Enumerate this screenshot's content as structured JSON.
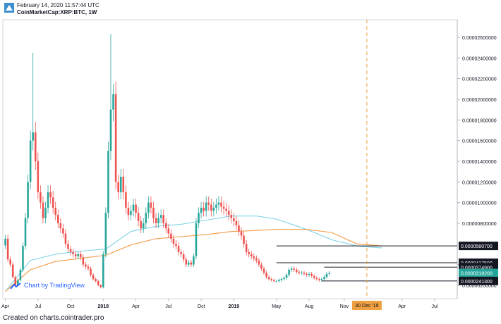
{
  "header": {
    "timestamp": "February 14, 2020 11:57:44 UTC",
    "symbol": "CoinMarketCap:XRP:BTC, 1W"
  },
  "watermark": "Chart by TradingView",
  "footer": "Created on charts.cointrader.pro",
  "colors": {
    "up": "#26a69a",
    "down": "#ef5350",
    "ma_orange": "#f39c45",
    "ma_cyan": "#7fd3e6",
    "marker": "#f0a040"
  },
  "chart_data": {
    "type": "candlestick",
    "title": "",
    "y_tick_labels": [
      "0.00002600000",
      "0.00002400000",
      "0.00002200000",
      "0.00002000000",
      "0.00001800000",
      "0.00001600000",
      "0.00001400000",
      "0.00001200000",
      "0.00001000000",
      "0.00000800000",
      "0.00000600000",
      "0.00000400000",
      "0.00000200000"
    ],
    "y_ticks": [
      2.6e-05,
      2.4e-05,
      2.2e-05,
      2e-05,
      1.8e-05,
      1.6e-05,
      1.4e-05,
      1.2e-05,
      1e-05,
      8e-06,
      6e-06,
      4e-06,
      2e-06
    ],
    "ylim": [
      7e-07,
      2.77e-05
    ],
    "x_tick_labels": [
      "Apr",
      "Jul",
      "Oct",
      "2018",
      "Apr",
      "Jul",
      "Oct",
      "2019",
      "May",
      "Aug",
      "Nov",
      "Apr",
      "Jul"
    ],
    "x_ticks": [
      0,
      13,
      26,
      39,
      52,
      65,
      78,
      91,
      108,
      121,
      135,
      158,
      171
    ],
    "xlim": [
      -1,
      180
    ],
    "highlighted_x_label": "30 Dec '19",
    "highlighted_x": 144,
    "price_labels": [
      {
        "label": "0.0000580700",
        "value": 5.807e-06,
        "bg": "#131722"
      },
      {
        "label": "0.0000417500",
        "value": 4.175e-06,
        "bg": "#131722"
      },
      {
        "label": "0.0000374900",
        "value": 3.749e-06,
        "bg": "#131722"
      },
      {
        "label": "0.0000318200",
        "value": 3.182e-06,
        "bg": "#26a69a"
      },
      {
        "label": "0.0000241300",
        "value": 2.413e-06,
        "bg": "#131722"
      }
    ],
    "hlines": [
      {
        "value": 5.807e-06,
        "x_from": 108
      },
      {
        "value": 4.175e-06,
        "x_from": 108
      },
      {
        "value": 3.749e-06,
        "x_from": 127
      },
      {
        "value": 2.413e-06,
        "x_from": 126
      }
    ],
    "close_series": [
      6.5e-06,
      4.5e-06,
      4e-06,
      2.8e-06,
      2e-06,
      2.5e-06,
      3.5e-06,
      5.8e-06,
      8.5e-06,
      1.2e-05,
      1.6e-05,
      1.68e-05,
      1.4e-05,
      1.1e-05,
      1e-05,
      8.5e-06,
      9.5e-06,
      1.1e-05,
      1.05e-05,
      9.5e-06,
      8.8e-06,
      8e-06,
      7.5e-06,
      7e-06,
      6e-06,
      5.5e-06,
      5.2e-06,
      5e-06,
      4.8e-06,
      5e-06,
      4.7e-06,
      4e-06,
      3.8e-06,
      3.6e-06,
      3e-06,
      2.6e-06,
      2.4e-06,
      2e-06,
      1.8e-06,
      5e-06,
      9e-06,
      1.5e-05,
      1.9e-05,
      2.05e-05,
      1.2e-05,
      1.1e-05,
      1.25e-05,
      1.1e-05,
      9.5e-06,
      8.8e-06,
      9.2e-06,
      9.8e-06,
      9e-06,
      8.2e-06,
      7.5e-06,
      8e-06,
      9e-06,
      1e-05,
      9.5e-06,
      8.5e-06,
      8e-06,
      8.5e-06,
      8.8e-06,
      8e-06,
      7.5e-06,
      7e-06,
      6.5e-06,
      6e-06,
      5.8e-06,
      5.2e-06,
      5e-06,
      4.5e-06,
      4e-06,
      4.2e-06,
      4e-06,
      4.8e-06,
      8e-06,
      9e-06,
      9.5e-06,
      9.2e-06,
      1e-05,
      9.8e-06,
      9.2e-06,
      9.5e-06,
      9.8e-06,
      1e-05,
      9.6e-06,
      9.4e-06,
      9.2e-06,
      8.8e-06,
      8.5e-06,
      8.2e-06,
      7.8e-06,
      7.2e-06,
      6.8e-06,
      6e-06,
      5.2e-06,
      5e-06,
      4.8e-06,
      4.6e-06,
      4.4e-06,
      4e-06,
      3.6e-06,
      3.2e-06,
      2.8e-06,
      2.6e-06,
      2.5e-06,
      2.4e-06,
      2.4e-06,
      2.5e-06,
      2.6e-06,
      2.7e-06,
      3e-06,
      3.5e-06,
      3.6e-06,
      3.5e-06,
      3.3e-06,
      3.2e-06,
      3.2e-06,
      3.1e-06,
      3e-06,
      3.1e-06,
      2.9e-06,
      2.7e-06,
      2.6e-06,
      2.5e-06,
      2.6e-06,
      2.8e-06,
      3.1e-06,
      3.18e-06
    ],
    "spikes": [
      {
        "x": 11,
        "high": 2.45e-05
      },
      {
        "x": 42,
        "high": 2.63e-05
      },
      {
        "x": 43,
        "high": 2.15e-05
      }
    ],
    "ma_orange": [
      [
        0,
        1.4e-06
      ],
      [
        10,
        3.5e-06
      ],
      [
        20,
        4.3e-06
      ],
      [
        30,
        4.6e-06
      ],
      [
        40,
        4.9e-06
      ],
      [
        50,
        5.9e-06
      ],
      [
        60,
        6.5e-06
      ],
      [
        70,
        6.7e-06
      ],
      [
        80,
        6.9e-06
      ],
      [
        90,
        7.2e-06
      ],
      [
        100,
        7.3e-06
      ],
      [
        108,
        7.4e-06
      ],
      [
        120,
        7.4e-06
      ],
      [
        130,
        7.1e-06
      ],
      [
        140,
        6e-06
      ],
      [
        150,
        5.8e-06
      ]
    ],
    "ma_cyan": [
      [
        0,
        1.4e-06
      ],
      [
        10,
        4.4e-06
      ],
      [
        20,
        5e-06
      ],
      [
        30,
        5.3e-06
      ],
      [
        40,
        5.5e-06
      ],
      [
        50,
        7.2e-06
      ],
      [
        60,
        7.7e-06
      ],
      [
        70,
        7.9e-06
      ],
      [
        80,
        8.3e-06
      ],
      [
        90,
        8.7e-06
      ],
      [
        100,
        8.7e-06
      ],
      [
        108,
        8.4e-06
      ],
      [
        120,
        7.4e-06
      ],
      [
        130,
        6.4e-06
      ],
      [
        140,
        5.8e-06
      ],
      [
        150,
        5.6e-06
      ]
    ]
  }
}
